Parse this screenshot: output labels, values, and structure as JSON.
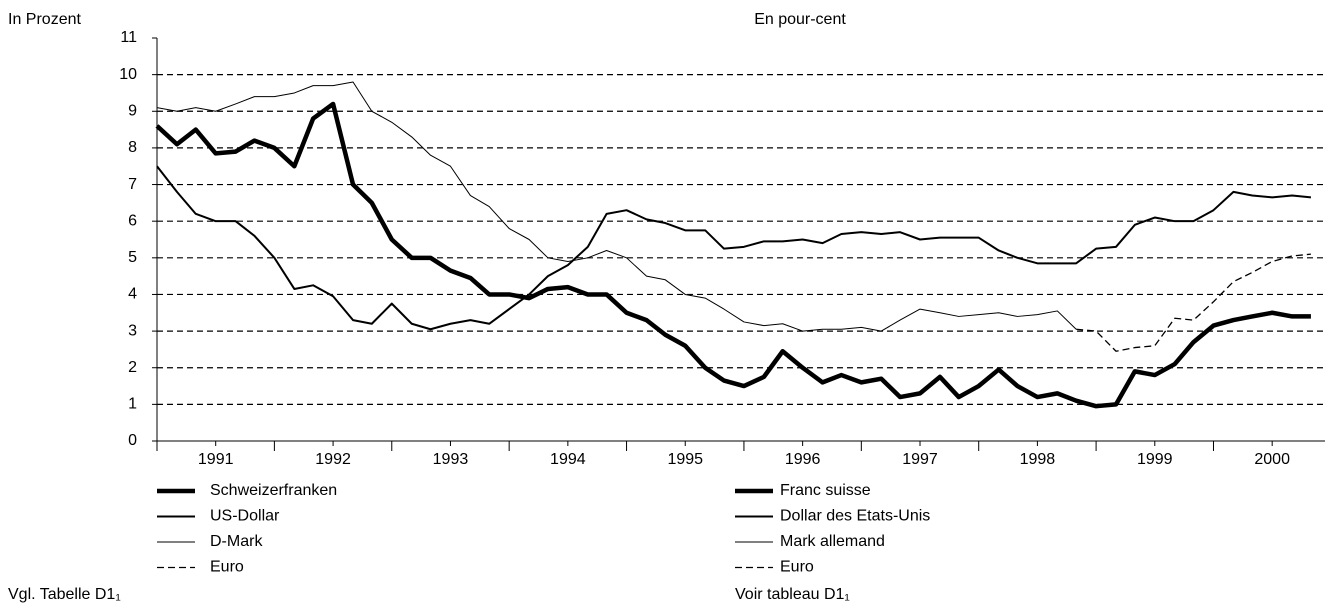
{
  "chart_data": {
    "type": "line",
    "title": "En pour-cent",
    "y_label": "In Prozent",
    "x": [
      1991,
      1991.17,
      1991.33,
      1991.5,
      1991.67,
      1991.83,
      1992,
      1992.17,
      1992.33,
      1992.5,
      1992.67,
      1992.83,
      1993,
      1993.17,
      1993.33,
      1993.5,
      1993.67,
      1993.83,
      1994,
      1994.17,
      1994.33,
      1994.5,
      1994.67,
      1994.83,
      1995,
      1995.17,
      1995.33,
      1995.5,
      1995.67,
      1995.83,
      1996,
      1996.17,
      1996.33,
      1996.5,
      1996.67,
      1996.83,
      1997,
      1997.17,
      1997.33,
      1997.5,
      1997.67,
      1997.83,
      1998,
      1998.17,
      1998.33,
      1998.5,
      1998.67,
      1998.83,
      1999,
      1999.17,
      1999.33,
      1999.5,
      1999.67,
      1999.83,
      2000,
      2000.17,
      2000.33,
      2000.5,
      2000.67,
      2000.83
    ],
    "series": [
      {
        "name": "Schweizerfranken",
        "color": "#000000",
        "width": 4.5,
        "values": [
          8.6,
          8.1,
          8.5,
          7.85,
          7.9,
          8.2,
          8.0,
          7.5,
          8.8,
          9.2,
          7.0,
          6.5,
          5.5,
          5.0,
          5.0,
          4.65,
          4.45,
          4.0,
          4.0,
          3.9,
          4.15,
          4.2,
          4.0,
          4.0,
          3.5,
          3.3,
          2.9,
          2.6,
          2.0,
          1.65,
          1.5,
          1.75,
          2.45,
          2.0,
          1.6,
          1.8,
          1.6,
          1.7,
          1.2,
          1.3,
          1.75,
          1.2,
          1.5,
          1.95,
          1.5,
          1.2,
          1.3,
          1.1,
          0.95,
          1.0,
          1.9,
          1.8,
          2.1,
          2.7,
          3.15,
          3.3,
          3.4,
          3.5,
          3.4,
          3.4
        ]
      },
      {
        "name": "US-Dollar",
        "color": "#000000",
        "width": 2,
        "values": [
          7.5,
          6.8,
          6.2,
          6.0,
          6.0,
          5.6,
          5.0,
          4.15,
          4.25,
          3.95,
          3.3,
          3.2,
          3.75,
          3.2,
          3.05,
          3.2,
          3.3,
          3.2,
          3.6,
          4.0,
          4.5,
          4.8,
          5.3,
          6.2,
          6.3,
          6.05,
          5.95,
          5.75,
          5.75,
          5.25,
          5.3,
          5.45,
          5.45,
          5.5,
          5.4,
          5.65,
          5.7,
          5.65,
          5.7,
          5.5,
          5.55,
          5.55,
          5.55,
          5.2,
          5.0,
          4.85,
          4.85,
          4.85,
          5.25,
          5.3,
          5.9,
          6.1,
          6.0,
          6.0,
          6.3,
          6.8,
          6.7,
          6.65,
          6.7,
          6.65
        ]
      },
      {
        "name": "D-Mark",
        "color": "#000000",
        "width": 1,
        "values": [
          9.1,
          9.0,
          9.1,
          9.0,
          9.2,
          9.4,
          9.4,
          9.5,
          9.7,
          9.7,
          9.8,
          9.0,
          8.7,
          8.3,
          7.8,
          7.5,
          6.7,
          6.4,
          5.8,
          5.5,
          5.0,
          4.9,
          5.0,
          5.2,
          5.0,
          4.5,
          4.4,
          4.0,
          3.9,
          3.6,
          3.25,
          3.15,
          3.2,
          3.0,
          3.05,
          3.05,
          3.1,
          3.0,
          3.3,
          3.6,
          3.5,
          3.4,
          3.45,
          3.5,
          3.4,
          3.45,
          3.55,
          3.05,
          null,
          null,
          null,
          null,
          null,
          null,
          null,
          null,
          null,
          null,
          null,
          null
        ]
      },
      {
        "name": "Euro",
        "color": "#000000",
        "width": 1.3,
        "dash": true,
        "values": [
          null,
          null,
          null,
          null,
          null,
          null,
          null,
          null,
          null,
          null,
          null,
          null,
          null,
          null,
          null,
          null,
          null,
          null,
          null,
          null,
          null,
          null,
          null,
          null,
          null,
          null,
          null,
          null,
          null,
          null,
          null,
          null,
          null,
          null,
          null,
          null,
          null,
          null,
          null,
          null,
          null,
          null,
          null,
          null,
          null,
          null,
          null,
          3.05,
          3.0,
          2.45,
          2.55,
          2.6,
          3.35,
          3.3,
          3.8,
          4.35,
          4.6,
          4.9,
          5.05,
          5.1
        ]
      }
    ],
    "legend_fr": [
      "Franc suisse",
      "Dollar des Etats-Unis",
      "Mark allemand",
      "Euro"
    ],
    "note_de": "Vgl. Tabelle D1₁",
    "note_fr": "Voir tableau D1₁",
    "xlim": [
      1991,
      2000.95
    ],
    "xticks": [
      1991,
      1992,
      1993,
      1994,
      1995,
      1996,
      1997,
      1998,
      1999,
      2000
    ],
    "ylim": [
      0,
      11
    ],
    "yticks": [
      0,
      1,
      2,
      3,
      4,
      5,
      6,
      7,
      8,
      9,
      10,
      11
    ],
    "grid": true
  }
}
